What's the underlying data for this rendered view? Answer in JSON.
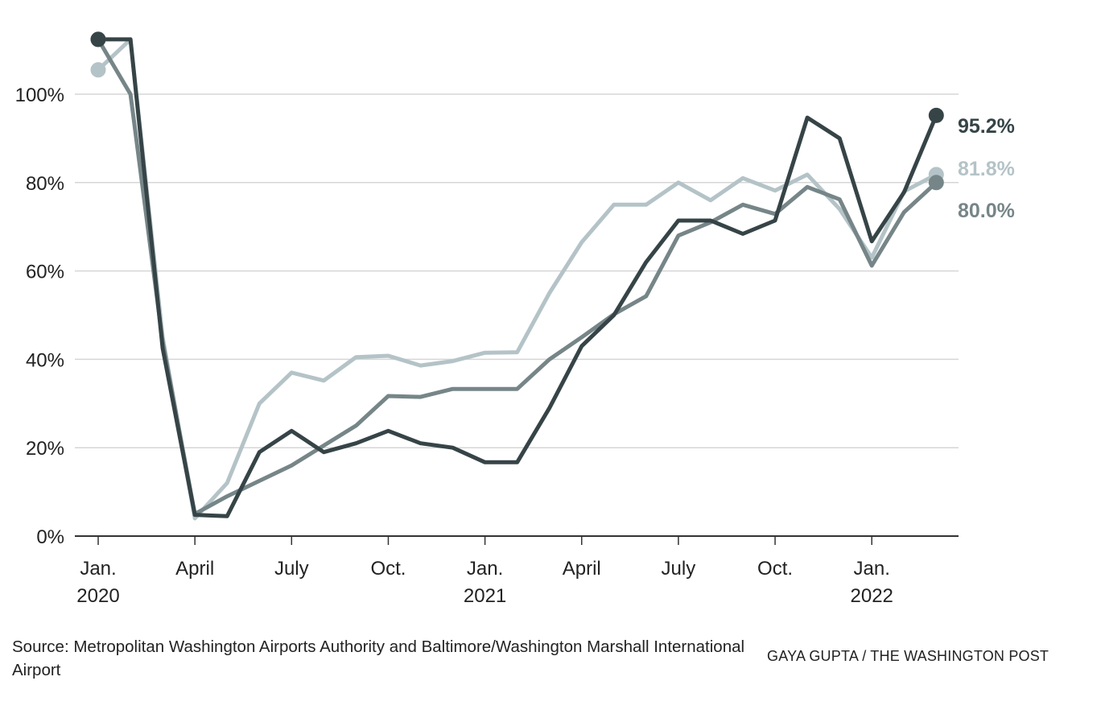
{
  "source": "Source: Metropolitan Washington Airports Authority and Baltimore/Washington Marshall International Airport",
  "credit": "GAYA GUPTA / THE WASHINGTON POST",
  "chart_data": {
    "type": "line",
    "ylim": [
      0,
      110
    ],
    "y_ticks": [
      0,
      20,
      40,
      60,
      80,
      100
    ],
    "y_tick_labels": [
      "0%",
      "20%",
      "40%",
      "60%",
      "80%",
      "100%"
    ],
    "grid": "horizontal",
    "x_tick_labels": [
      {
        "month": 0,
        "line1": "Jan.",
        "line2": "2020"
      },
      {
        "month": 3,
        "line1": "April",
        "line2": ""
      },
      {
        "month": 6,
        "line1": "July",
        "line2": ""
      },
      {
        "month": 9,
        "line1": "Oct.",
        "line2": ""
      },
      {
        "month": 12,
        "line1": "Jan.",
        "line2": "2021"
      },
      {
        "month": 15,
        "line1": "April",
        "line2": ""
      },
      {
        "month": 18,
        "line1": "July",
        "line2": ""
      },
      {
        "month": 21,
        "line1": "Oct.",
        "line2": ""
      },
      {
        "month": 24,
        "line1": "Jan.",
        "line2": "2022"
      }
    ],
    "x_months": [
      "Jan. 2020",
      "Feb. 2020",
      "Mar. 2020",
      "Apr. 2020",
      "May 2020",
      "Jun. 2020",
      "Jul. 2020",
      "Aug. 2020",
      "Sep. 2020",
      "Oct. 2020",
      "Nov. 2020",
      "Dec. 2020",
      "Jan. 2021",
      "Feb. 2021",
      "Mar. 2021",
      "Apr. 2021",
      "May 2021",
      "Jun. 2021",
      "Jul. 2021",
      "Aug. 2021",
      "Sep. 2021",
      "Oct. 2021",
      "Nov. 2021",
      "Dec. 2021",
      "Jan. 2022",
      "Feb. 2022",
      "Mar. 2022"
    ],
    "series": [
      {
        "color": "#b4c3c7",
        "end_label": "81.8%",
        "values": [
          105.5,
          112.4,
          45,
          4,
          12,
          30,
          37,
          35.2,
          40.5,
          40.8,
          38.6,
          39.6,
          41.5,
          41.6,
          55,
          66.5,
          75,
          75,
          80,
          76,
          81,
          78.2,
          81.8,
          74,
          63,
          78,
          81.8
        ]
      },
      {
        "color": "#768588",
        "end_label": "80.0%",
        "values": [
          112.4,
          100,
          44,
          5,
          9,
          12.5,
          16,
          20.5,
          25,
          31.7,
          31.5,
          33.3,
          33.3,
          33.3,
          40,
          45,
          50.2,
          54.3,
          68,
          71,
          75,
          72.9,
          79,
          76.2,
          61.2,
          73.3,
          80.0
        ]
      },
      {
        "color": "#364447",
        "end_label": "95.2%",
        "values": [
          112.4,
          112.4,
          42.5,
          4.8,
          4.5,
          19,
          23.8,
          19,
          21,
          23.8,
          21,
          20,
          16.7,
          16.7,
          29,
          43,
          50,
          62,
          71.4,
          71.4,
          68.4,
          71.4,
          94.7,
          90,
          66.7,
          77.8,
          95.2
        ]
      }
    ]
  }
}
